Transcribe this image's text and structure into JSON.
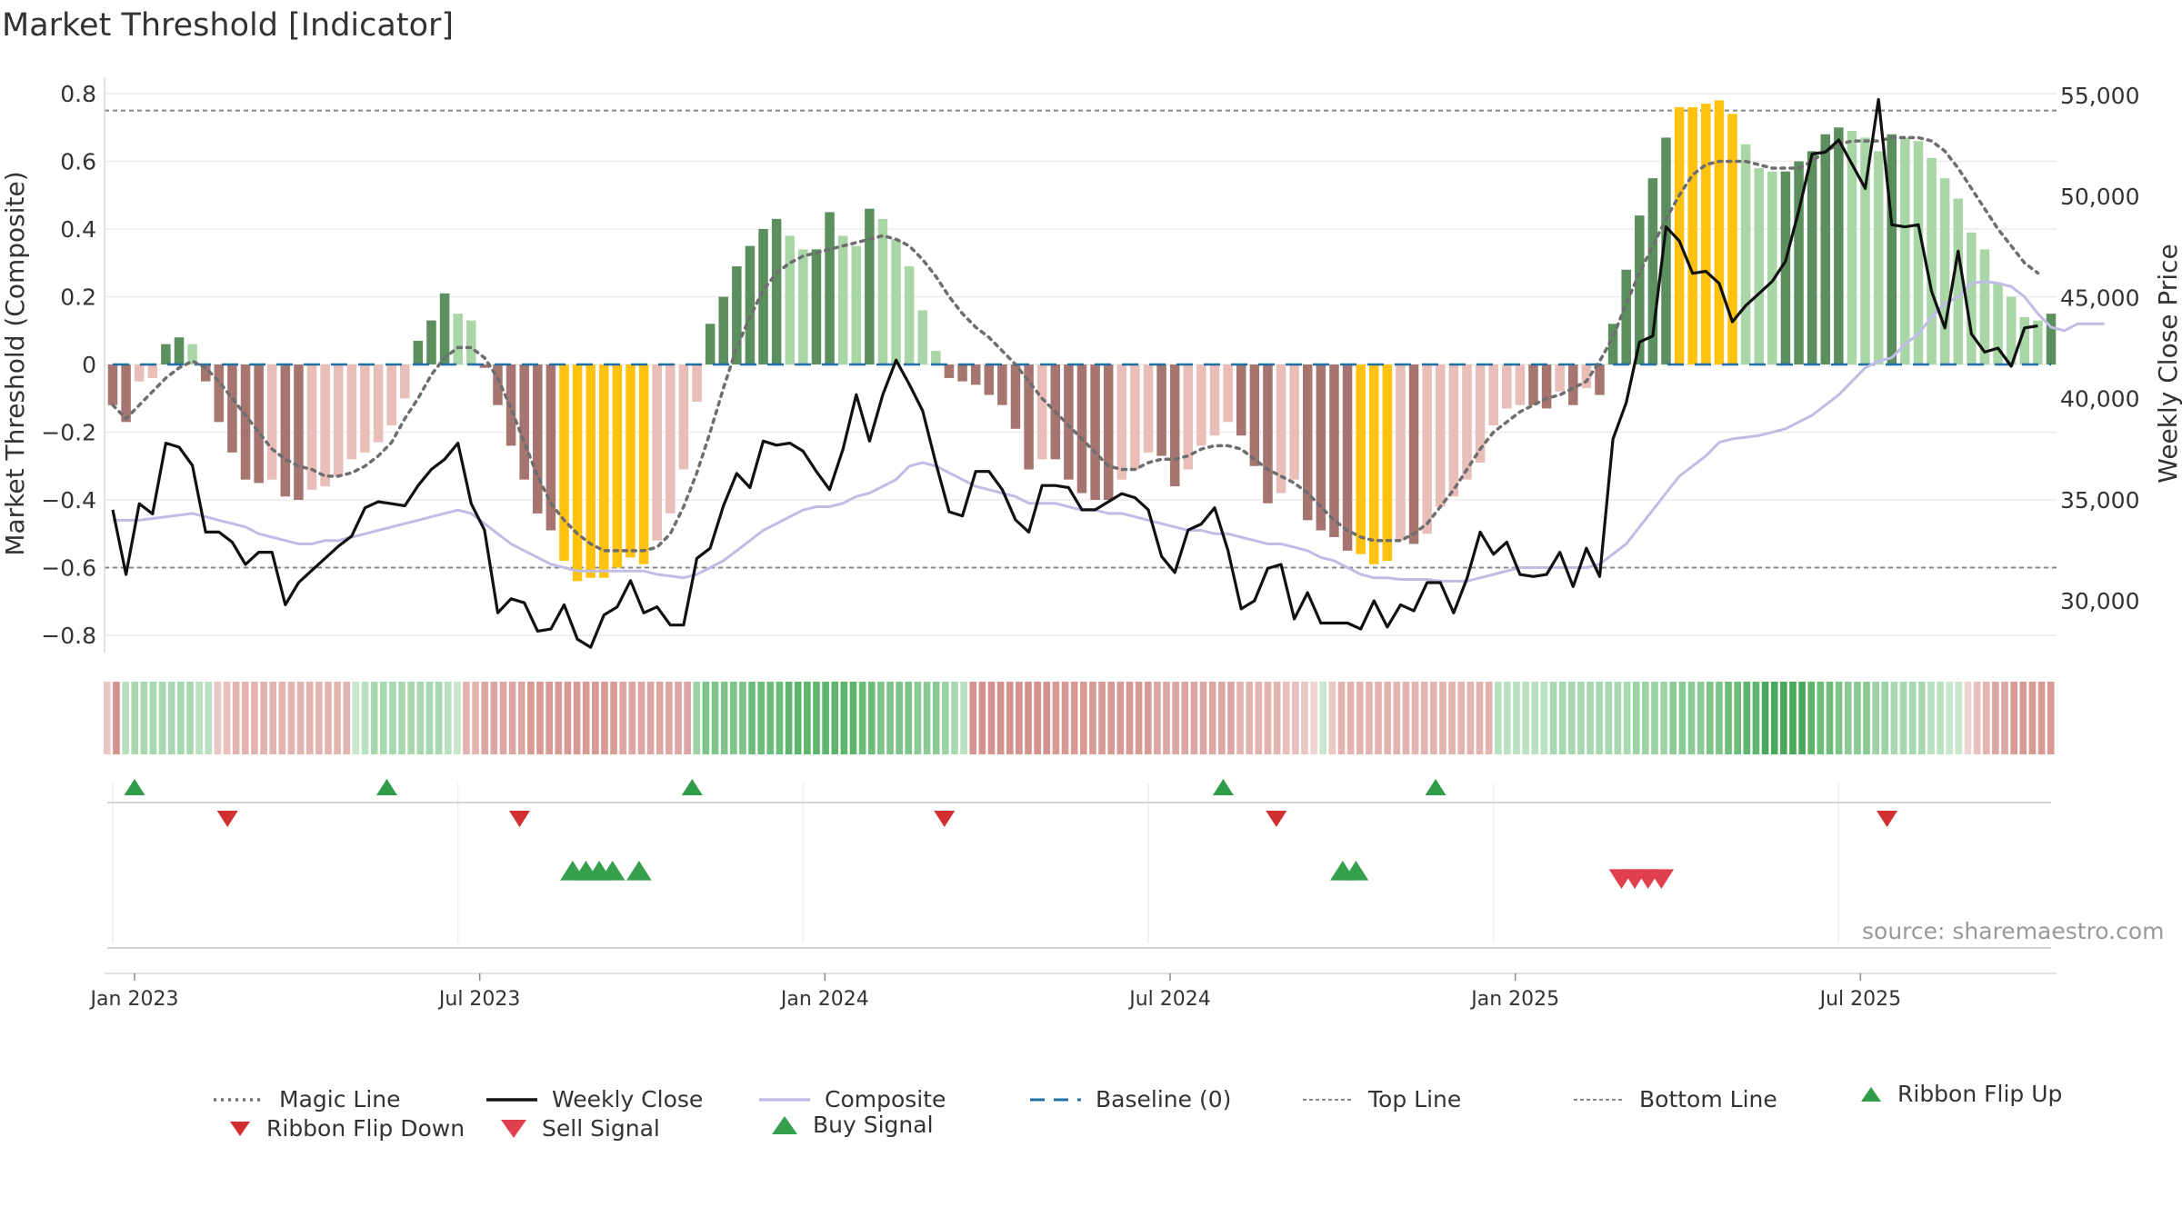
{
  "title": "Market Threshold [Indicator]",
  "source": "source: sharemaestro.com",
  "chart_data": {
    "type": "bar",
    "title": "Market Threshold [Indicator]",
    "ylabel_left": "Market Threshold (Composite)",
    "ylabel_right": "Weekly Close Price",
    "ylim_left": [
      -0.85,
      0.85
    ],
    "ylim_right": [
      27500,
      56000
    ],
    "left_ticks": [
      0.8,
      0.6,
      0.4,
      0.2,
      0,
      -0.2,
      -0.4,
      -0.6,
      -0.8
    ],
    "left_tick_labels": [
      "0.8",
      "0.6",
      "0.4",
      "0.2",
      "0",
      "−0.2",
      "−0.4",
      "−0.6",
      "−0.8"
    ],
    "right_ticks": [
      55000,
      50000,
      45000,
      40000,
      35000,
      30000
    ],
    "right_tick_labels": [
      "55,000",
      "50,000",
      "45,000",
      "40,000",
      "35,000",
      "30,000"
    ],
    "x_tick_weeks": [
      1,
      27,
      53,
      79,
      105,
      131
    ],
    "x_tick_labels": [
      "Jan 2023",
      "Jul 2023",
      "Jan 2024",
      "Jul 2024",
      "Jan 2025",
      "Jul 2025"
    ],
    "top_line": 0.75,
    "bottom_line": -0.6,
    "week_start": "2022-12-19",
    "composite_bars": [
      -0.12,
      -0.17,
      -0.05,
      -0.04,
      0.06,
      0.08,
      0.06,
      -0.05,
      -0.17,
      -0.26,
      -0.34,
      -0.35,
      -0.34,
      -0.39,
      -0.4,
      -0.37,
      -0.36,
      -0.33,
      -0.28,
      -0.26,
      -0.23,
      -0.18,
      -0.1,
      0.07,
      0.13,
      0.21,
      0.15,
      0.13,
      -0.01,
      -0.12,
      -0.24,
      -0.34,
      -0.44,
      -0.49,
      -0.58,
      -0.64,
      -0.63,
      -0.63,
      -0.6,
      -0.57,
      -0.59,
      -0.52,
      -0.44,
      -0.31,
      -0.11,
      0.12,
      0.2,
      0.29,
      0.35,
      0.4,
      0.43,
      0.38,
      0.34,
      0.34,
      0.45,
      0.38,
      0.35,
      0.46,
      0.43,
      0.37,
      0.29,
      0.16,
      0.04,
      -0.04,
      -0.05,
      -0.06,
      -0.09,
      -0.12,
      -0.19,
      -0.31,
      -0.28,
      -0.28,
      -0.34,
      -0.38,
      -0.4,
      -0.4,
      -0.34,
      -0.31,
      -0.26,
      -0.27,
      -0.36,
      -0.31,
      -0.24,
      -0.21,
      -0.17,
      -0.21,
      -0.3,
      -0.41,
      -0.38,
      -0.34,
      -0.46,
      -0.49,
      -0.51,
      -0.55,
      -0.56,
      -0.59,
      -0.58,
      -0.52,
      -0.53,
      -0.5,
      -0.42,
      -0.39,
      -0.34,
      -0.29,
      -0.18,
      -0.13,
      -0.12,
      -0.12,
      -0.13,
      -0.08,
      -0.12,
      -0.07,
      -0.09,
      0.12,
      0.28,
      0.44,
      0.55,
      0.67,
      0.76,
      0.76,
      0.77,
      0.78,
      0.74,
      0.65,
      0.58,
      0.57,
      0.57,
      0.6,
      0.63,
      0.68,
      0.7,
      0.69,
      0.67,
      0.63,
      0.68,
      0.67,
      0.66,
      0.61,
      0.55,
      0.49,
      0.39,
      0.34,
      0.24,
      0.2,
      0.14,
      0.13,
      0.15
    ],
    "magic_line": [
      -0.12,
      -0.16,
      -0.12,
      -0.08,
      -0.04,
      -0.01,
      0.01,
      -0.01,
      -0.05,
      -0.1,
      -0.15,
      -0.2,
      -0.25,
      -0.28,
      -0.3,
      -0.31,
      -0.33,
      -0.33,
      -0.32,
      -0.3,
      -0.27,
      -0.23,
      -0.16,
      -0.1,
      -0.03,
      0.02,
      0.05,
      0.05,
      0.02,
      -0.04,
      -0.13,
      -0.23,
      -0.33,
      -0.41,
      -0.46,
      -0.5,
      -0.53,
      -0.55,
      -0.55,
      -0.55,
      -0.55,
      -0.54,
      -0.5,
      -0.42,
      -0.32,
      -0.2,
      -0.07,
      0.05,
      0.14,
      0.22,
      0.27,
      0.3,
      0.32,
      0.33,
      0.34,
      0.35,
      0.36,
      0.37,
      0.38,
      0.37,
      0.35,
      0.31,
      0.26,
      0.2,
      0.15,
      0.11,
      0.08,
      0.04,
      0,
      -0.05,
      -0.1,
      -0.14,
      -0.18,
      -0.22,
      -0.26,
      -0.3,
      -0.31,
      -0.31,
      -0.29,
      -0.28,
      -0.28,
      -0.27,
      -0.25,
      -0.24,
      -0.24,
      -0.25,
      -0.28,
      -0.31,
      -0.33,
      -0.35,
      -0.38,
      -0.42,
      -0.46,
      -0.49,
      -0.51,
      -0.52,
      -0.52,
      -0.52,
      -0.5,
      -0.47,
      -0.42,
      -0.37,
      -0.31,
      -0.25,
      -0.2,
      -0.17,
      -0.14,
      -0.12,
      -0.1,
      -0.09,
      -0.07,
      -0.05,
      0.01,
      0.08,
      0.18,
      0.27,
      0.35,
      0.43,
      0.5,
      0.56,
      0.59,
      0.6,
      0.6,
      0.6,
      0.59,
      0.58,
      0.58,
      0.58,
      0.6,
      0.63,
      0.65,
      0.66,
      0.66,
      0.66,
      0.67,
      0.67,
      0.67,
      0.66,
      0.63,
      0.58,
      0.52,
      0.46,
      0.4,
      0.35,
      0.3,
      0.27
    ],
    "weekly_close": [
      34500,
      31300,
      34800,
      34300,
      37800,
      37600,
      36700,
      33400,
      33400,
      32900,
      31800,
      32400,
      32400,
      29800,
      30900,
      31500,
      32100,
      32700,
      33200,
      34600,
      34900,
      34800,
      34700,
      35700,
      36500,
      37000,
      37800,
      34800,
      33500,
      29400,
      30100,
      29900,
      28500,
      28600,
      29800,
      28100,
      27700,
      29300,
      29700,
      31000,
      29400,
      29700,
      28800,
      28800,
      32100,
      32600,
      34700,
      36300,
      35600,
      37900,
      37700,
      37800,
      37400,
      36400,
      35500,
      37500,
      40200,
      37900,
      40200,
      41900,
      40700,
      39400,
      36800,
      34400,
      34200,
      36400,
      36400,
      35500,
      34000,
      33400,
      35700,
      35700,
      35600,
      34500,
      34500,
      34900,
      35300,
      35100,
      34500,
      32200,
      31400,
      33500,
      33800,
      34600,
      32500,
      29600,
      30000,
      31600,
      31800,
      29100,
      30400,
      28900,
      28900,
      28900,
      28600,
      30000,
      28700,
      29800,
      29500,
      30900,
      30900,
      29400,
      31100,
      33400,
      32300,
      32900,
      31300,
      31200,
      31300,
      32400,
      30700,
      32600,
      31200,
      38000,
      39800,
      42800,
      43100,
      48500,
      47800,
      46200,
      46300,
      45700,
      43800,
      44600,
      45200,
      45800,
      46800,
      49300,
      52100,
      52200,
      52800,
      51600,
      50400,
      54800,
      48600,
      48500,
      48600,
      45300,
      43500,
      47300,
      43200,
      42300,
      42500,
      41600,
      43500,
      43600
    ],
    "composite_line": [
      -0.46,
      -0.46,
      -0.46,
      -0.455,
      -0.45,
      -0.445,
      -0.44,
      -0.45,
      -0.46,
      -0.47,
      -0.48,
      -0.5,
      -0.51,
      -0.52,
      -0.53,
      -0.53,
      -0.52,
      -0.52,
      -0.51,
      -0.5,
      -0.49,
      -0.48,
      -0.47,
      -0.46,
      -0.45,
      -0.44,
      -0.43,
      -0.44,
      -0.47,
      -0.5,
      -0.53,
      -0.55,
      -0.57,
      -0.59,
      -0.6,
      -0.61,
      -0.61,
      -0.61,
      -0.61,
      -0.61,
      -0.61,
      -0.62,
      -0.625,
      -0.63,
      -0.62,
      -0.6,
      -0.58,
      -0.55,
      -0.52,
      -0.49,
      -0.47,
      -0.45,
      -0.43,
      -0.42,
      -0.42,
      -0.41,
      -0.39,
      -0.38,
      -0.36,
      -0.34,
      -0.3,
      -0.29,
      -0.3,
      -0.32,
      -0.34,
      -0.36,
      -0.37,
      -0.38,
      -0.39,
      -0.41,
      -0.41,
      -0.41,
      -0.42,
      -0.43,
      -0.43,
      -0.44,
      -0.44,
      -0.45,
      -0.46,
      -0.47,
      -0.48,
      -0.49,
      -0.49,
      -0.5,
      -0.5,
      -0.51,
      -0.52,
      -0.53,
      -0.53,
      -0.54,
      -0.55,
      -0.57,
      -0.58,
      -0.6,
      -0.62,
      -0.63,
      -0.63,
      -0.635,
      -0.635,
      -0.635,
      -0.64,
      -0.64,
      -0.64,
      -0.63,
      -0.62,
      -0.61,
      -0.6,
      -0.6,
      -0.6,
      -0.6,
      -0.6,
      -0.6,
      -0.59,
      -0.56,
      -0.53,
      -0.48,
      -0.43,
      -0.38,
      -0.33,
      -0.3,
      -0.27,
      -0.23,
      -0.22,
      -0.215,
      -0.21,
      -0.2,
      -0.19,
      -0.17,
      -0.15,
      -0.12,
      -0.09,
      -0.05,
      -0.01,
      0.01,
      0.02,
      0.06,
      0.09,
      0.14,
      0.18,
      0.2,
      0.24,
      0.245,
      0.24,
      0.23,
      0.2,
      0.15,
      0.11,
      0.1,
      0.12,
      0.12,
      0.12
    ],
    "ribbon_colors": [
      "#e9c7c5",
      "#d3928d",
      "#b9e0bf",
      "#a8d8b0",
      "#a8d8b0",
      "#a8d8b0",
      "#a8d8b0",
      "#a8d8b0",
      "#a8d8b0",
      "#a8d8b0",
      "#b9e0bf",
      "#b9e0bf",
      "#e9c7c5",
      "#e8bfbc",
      "#e3b3af",
      "#e3b3af",
      "#e3b3af",
      "#e3b3af",
      "#e3b3af",
      "#e3b3af",
      "#e3b3af",
      "#e3b3af",
      "#e3b3af",
      "#e3b3af",
      "#e3b3af",
      "#e3b3af",
      "#e3b3af",
      "#c9e7cd",
      "#b9e0bf",
      "#a8d8b0",
      "#a8d8b0",
      "#a8d8b0",
      "#a8d8b0",
      "#a8d8b0",
      "#a8d8b0",
      "#a8d8b0",
      "#a8d8b0",
      "#b9e0bf",
      "#c9e7cd",
      "#e3b3af",
      "#e3b3af",
      "#dca6a2",
      "#dca6a2",
      "#dca6a2",
      "#dca6a2",
      "#dca6a2",
      "#d79a95",
      "#d79a95",
      "#d79a95",
      "#d79a95",
      "#d79a95",
      "#d79a95",
      "#d79a95",
      "#d79a95",
      "#d79a95",
      "#d79a95",
      "#dca6a2",
      "#dca6a2",
      "#dca6a2",
      "#dca6a2",
      "#dca6a2",
      "#dca6a2",
      "#dca6a2",
      "#dca6a2",
      "#9bd3a4",
      "#7ec48a",
      "#7ec48a",
      "#7ec48a",
      "#7ec48a",
      "#7ec48a",
      "#6cbc7a",
      "#6cbc7a",
      "#6cbc7a",
      "#6cbc7a",
      "#5fb56e",
      "#5fb56e",
      "#5fb56e",
      "#5fb56e",
      "#5fb56e",
      "#5fb56e",
      "#5fb56e",
      "#5fb56e",
      "#6cbc7a",
      "#6cbc7a",
      "#7ec48a",
      "#7ec48a",
      "#7ec48a",
      "#7ec48a",
      "#8acb95",
      "#8acb95",
      "#8acb95",
      "#9bd3a4",
      "#a8d8b0",
      "#b9e0bf",
      "#d3928d",
      "#d3928d",
      "#d3928d",
      "#d3928d",
      "#d3928d",
      "#d3928d",
      "#d3928d",
      "#d3928d",
      "#d3928d",
      "#d79a95",
      "#d79a95",
      "#d79a95",
      "#d79a95",
      "#d79a95",
      "#d79a95",
      "#d79a95",
      "#d79a95",
      "#d79a95",
      "#d79a95",
      "#d79a95",
      "#dca6a2",
      "#dca6a2",
      "#dca6a2",
      "#dca6a2",
      "#dca6a2",
      "#dca6a2",
      "#dca6a2",
      "#dca6a2",
      "#dca6a2",
      "#e3b3af",
      "#e3b3af",
      "#e3b3af",
      "#e3b3af",
      "#e3b3af",
      "#e8bfbc",
      "#e8bfbc",
      "#e9c7c5",
      "#eed4d2",
      "#c9e7cd",
      "#e9c7c5",
      "#e3b3af",
      "#e3b3af",
      "#e3b3af",
      "#e3b3af",
      "#e3b3af",
      "#e3b3af",
      "#e3b3af",
      "#e3b3af",
      "#e3b3af",
      "#e3b3af",
      "#e3b3af",
      "#e3b3af",
      "#e3b3af",
      "#e3b3af",
      "#e3b3af",
      "#e3b3af",
      "#e3b3af",
      "#b9e0bf",
      "#b9e0bf",
      "#b9e0bf",
      "#b9e0bf",
      "#b9e0bf",
      "#b9e0bf",
      "#a8d8b0",
      "#a8d8b0",
      "#a8d8b0",
      "#a8d8b0",
      "#a8d8b0",
      "#a8d8b0",
      "#a8d8b0",
      "#a8d8b0",
      "#a8d8b0",
      "#9bd3a4",
      "#9bd3a4",
      "#9bd3a4",
      "#9bd3a4",
      "#8acb95",
      "#8acb95",
      "#8acb95",
      "#8acb95",
      "#7ec48a",
      "#7ec48a",
      "#6cbc7a",
      "#6cbc7a",
      "#5fb56e",
      "#5fb56e",
      "#4aa85c",
      "#4aa85c",
      "#4aa85c",
      "#4aa85c",
      "#4aa85c",
      "#5fb56e",
      "#6cbc7a",
      "#6cbc7a",
      "#7ec48a",
      "#8acb95",
      "#8acb95",
      "#8acb95",
      "#9bd3a4",
      "#9bd3a4",
      "#a8d8b0",
      "#a8d8b0",
      "#a8d8b0",
      "#a8d8b0",
      "#b9e0bf",
      "#b9e0bf",
      "#c9e7cd",
      "#c9e7cd",
      "#eed4d2",
      "#e8bfbc",
      "#e3b3af",
      "#dca6a2",
      "#dca6a2",
      "#d79a95",
      "#d79a95",
      "#d79a95",
      "#d79a95",
      "#d79a95"
    ],
    "ribbon_flip_up_weeks": [
      1,
      20,
      43,
      83,
      99
    ],
    "ribbon_flip_down_weeks": [
      8,
      30,
      62,
      87,
      133
    ],
    "buy_signal_weeks": [
      34,
      35,
      36,
      37,
      39,
      92,
      93
    ],
    "sell_signal_weeks": [
      113,
      114,
      115,
      116
    ],
    "colors": {
      "bull_dark": "#5b8f5e",
      "bull_light": "#a9d6a6",
      "bear_dark": "#a67570",
      "bear_light": "#e9bdb8",
      "extreme": "#ffc20e",
      "magic": "#6e6e6e",
      "close": "#111111",
      "composite": "#bfbde6",
      "baseline": "#1f6fa5",
      "flip_up": "#2e9c48",
      "flip_down": "#d12f2f",
      "sell": "#e0404e",
      "buy": "#35a04b"
    }
  },
  "legend": [
    {
      "label": "Magic Line",
      "icon": "dotted-line"
    },
    {
      "label": "Weekly Close",
      "icon": "solid-line"
    },
    {
      "label": "Composite",
      "icon": "lavender-line"
    },
    {
      "label": "Baseline (0)",
      "icon": "dashed-line"
    },
    {
      "label": "Top Line",
      "icon": "thin-dotted-line"
    },
    {
      "label": "Bottom Line",
      "icon": "thin-dotted-line"
    },
    {
      "label": "Ribbon Flip Up",
      "icon": "triangle-up"
    },
    {
      "label": "Ribbon Flip Down",
      "icon": "triangle-down"
    },
    {
      "label": "Sell Signal",
      "icon": "triangle-down"
    },
    {
      "label": "Buy Signal",
      "icon": "triangle-up"
    }
  ]
}
